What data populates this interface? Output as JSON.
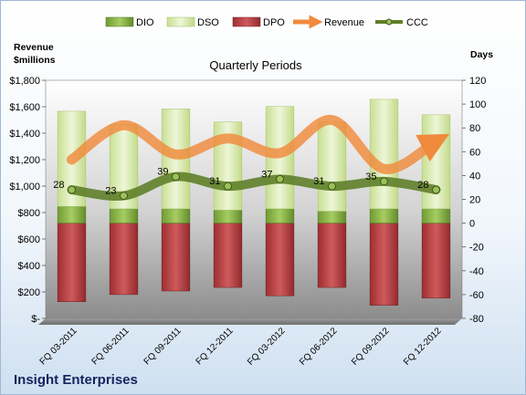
{
  "company": "Insight Enterprises",
  "legend": [
    {
      "key": "dio",
      "label": "DIO",
      "color": "#7cab3c"
    },
    {
      "key": "dso",
      "label": "DSO",
      "color": "#d6e8a8"
    },
    {
      "key": "dpo",
      "label": "DPO",
      "color": "#b33a3c"
    },
    {
      "key": "revenue",
      "label": "Revenue",
      "color": "#f08a3c"
    },
    {
      "key": "ccc",
      "label": "CCC",
      "color": "#5f7f2a"
    }
  ],
  "chart_data": {
    "type": "bar",
    "title": "Quarterly Periods",
    "left_axis_label": "Revenue\n$millions",
    "right_axis_label": "Days",
    "categories": [
      "FQ 03-2011",
      "FQ 06-2011",
      "FQ 09-2011",
      "FQ 12-2011",
      "FQ 03-2012",
      "FQ 06-2012",
      "FQ 09-2012",
      "FQ 12-2012"
    ],
    "left_axis": {
      "min": 0,
      "max": 1800,
      "step": 200,
      "tick_labels": [
        "$-",
        "$200",
        "$400",
        "$600",
        "$800",
        "$1,000",
        "$1,200",
        "$1,400",
        "$1,600",
        "$1,800"
      ]
    },
    "right_axis": {
      "min": -80,
      "max": 120,
      "step": 20
    },
    "series": [
      {
        "name": "DPO",
        "axis": "right",
        "values": [
          -66,
          -60,
          -57,
          -54,
          -61,
          -54,
          -69,
          -63
        ]
      },
      {
        "name": "DIO",
        "axis": "right",
        "values": [
          14,
          12,
          12,
          11,
          12,
          10,
          12,
          12
        ]
      },
      {
        "name": "DSO",
        "axis": "right",
        "values": [
          80,
          71,
          84,
          74,
          86,
          75,
          92,
          79
        ]
      },
      {
        "name": "Revenue",
        "axis": "left",
        "values": [
          1200,
          1460,
          1240,
          1360,
          1250,
          1500,
          1130,
          1340
        ]
      },
      {
        "name": "CCC",
        "axis": "right",
        "values": [
          28,
          23,
          39,
          31,
          37,
          31,
          35,
          28
        ]
      }
    ],
    "ccc_labels": [
      "28",
      "23",
      "39",
      "31",
      "37",
      "31",
      "35",
      "28"
    ],
    "grid": false
  }
}
